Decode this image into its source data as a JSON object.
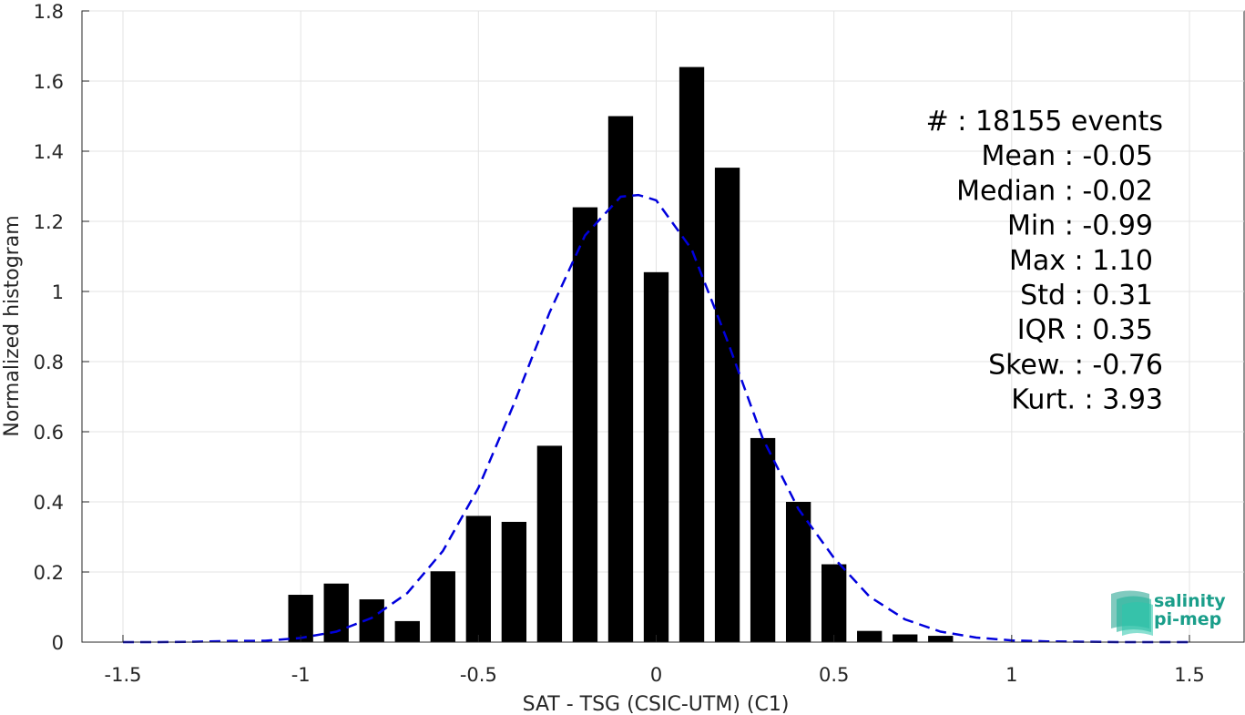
{
  "chart_data": {
    "type": "bar",
    "xlabel": "SAT - TSG (CSIC-UTM) (C1)",
    "ylabel": "Normalized histogram",
    "xlim": [
      -1.5,
      1.5
    ],
    "ylim": [
      0,
      1.8
    ],
    "xticks": [
      "-1.5",
      "-1",
      "-0.5",
      "0",
      "0.5",
      "1",
      "1.5"
    ],
    "yticks": [
      "0",
      "0.2",
      "0.4",
      "0.6",
      "0.8",
      "1",
      "1.2",
      "1.4",
      "1.6",
      "1.8"
    ],
    "grid": true,
    "bar_width": 0.07,
    "bars": {
      "x": [
        -1.0,
        -0.9,
        -0.8,
        -0.7,
        -0.6,
        -0.5,
        -0.4,
        -0.3,
        -0.2,
        -0.1,
        0.0,
        0.1,
        0.2,
        0.3,
        0.4,
        0.5,
        0.6,
        0.7,
        0.8
      ],
      "values": [
        0.135,
        0.167,
        0.122,
        0.06,
        0.202,
        0.36,
        0.343,
        0.56,
        1.24,
        1.5,
        1.055,
        1.64,
        1.353,
        0.582,
        0.4,
        0.222,
        0.032,
        0.022,
        0.018
      ],
      "color": "#000000"
    },
    "fit_curve": {
      "style": "dashed",
      "color": "#0000dd",
      "x": [
        -1.5,
        -1.4,
        -1.3,
        -1.2,
        -1.1,
        -1.0,
        -0.9,
        -0.8,
        -0.7,
        -0.6,
        -0.5,
        -0.4,
        -0.3,
        -0.2,
        -0.1,
        -0.05,
        0.0,
        0.1,
        0.2,
        0.3,
        0.4,
        0.5,
        0.6,
        0.7,
        0.8,
        0.9,
        1.0,
        1.1,
        1.2,
        1.3,
        1.4,
        1.5
      ],
      "y": [
        0.0,
        0.0,
        0.001,
        0.003,
        0.004,
        0.012,
        0.03,
        0.069,
        0.14,
        0.26,
        0.44,
        0.68,
        0.94,
        1.16,
        1.27,
        1.275,
        1.26,
        1.12,
        0.86,
        0.58,
        0.38,
        0.24,
        0.13,
        0.065,
        0.03,
        0.013,
        0.005,
        0.002,
        0.001,
        0.0,
        0.0,
        0.0
      ]
    },
    "annotations": [
      "#  : 18155 events",
      "Mean : -0.05",
      "Median : -0.02",
      "Min : -0.99",
      "Max : 1.10",
      "Std : 0.31",
      "IQR : 0.35",
      "Skew. : -0.76",
      "Kurt. : 3.93"
    ]
  },
  "logo": {
    "line1": "salinity",
    "line2": "pi-mep",
    "color": "#1a9e8a"
  }
}
